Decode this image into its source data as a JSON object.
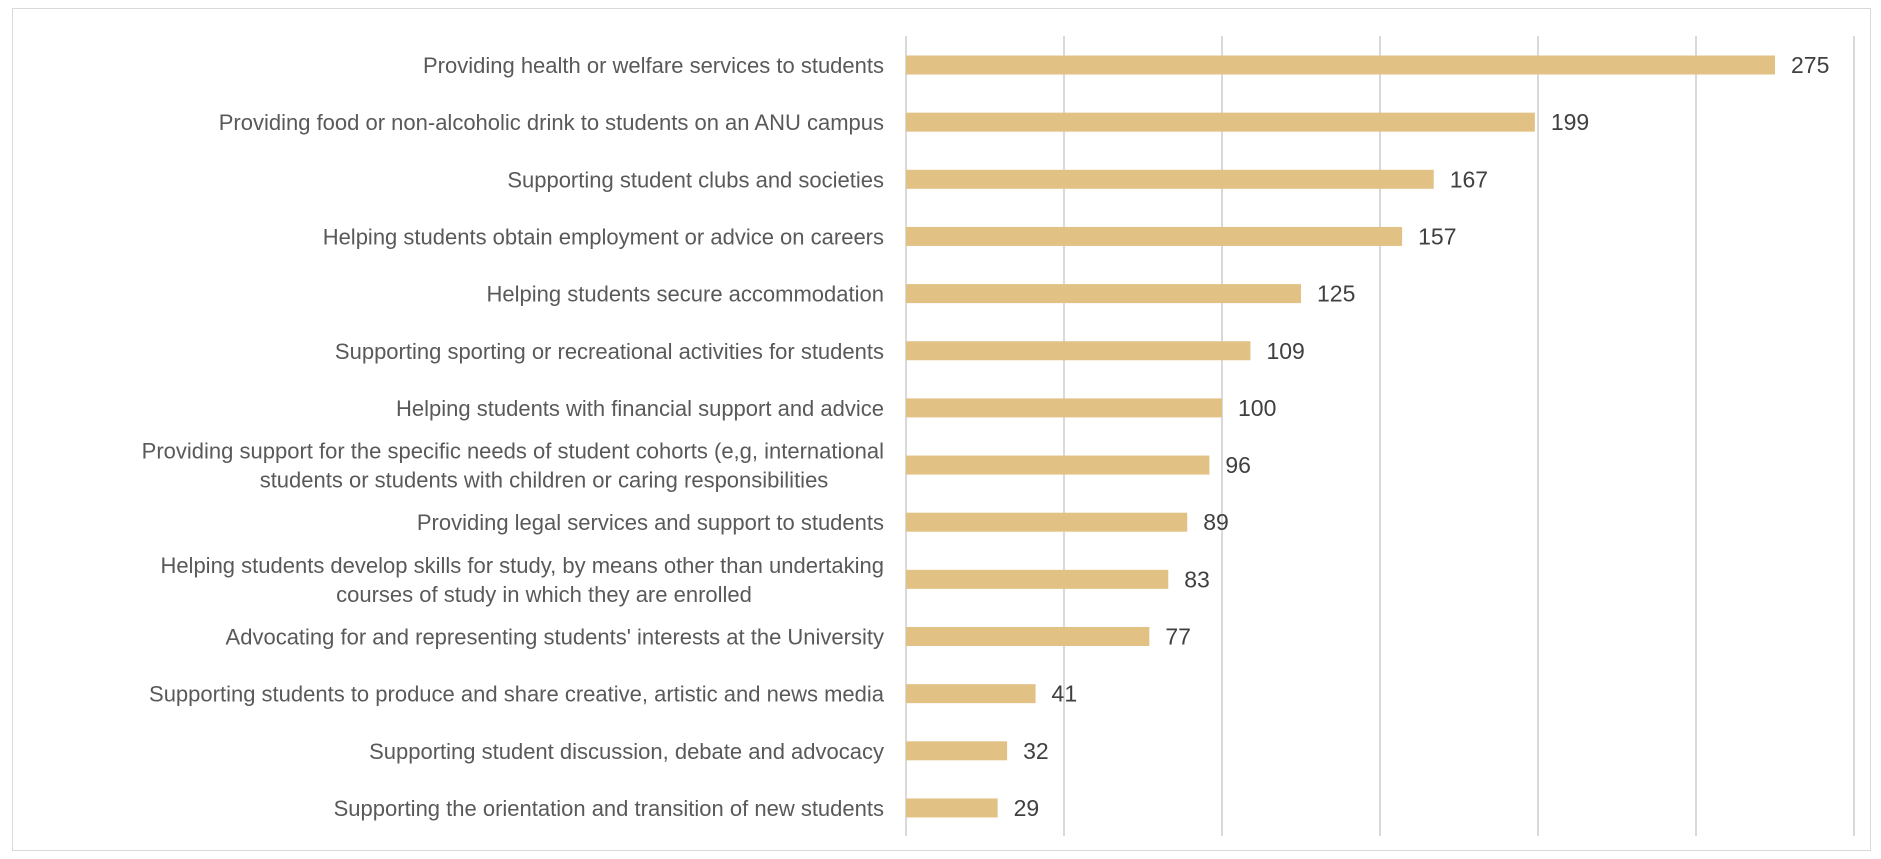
{
  "chart_data": {
    "type": "bar",
    "orientation": "horizontal",
    "title": "",
    "xlabel": "",
    "ylabel": "",
    "xlim": [
      0,
      300
    ],
    "grid": true,
    "legend": "none",
    "bar_color": "#E2C185",
    "categories": [
      [
        "Providing health or welfare services to students"
      ],
      [
        "Providing food or non-alcoholic drink to students on an ANU campus"
      ],
      [
        "Supporting student clubs and societies"
      ],
      [
        "Helping students obtain employment or advice on careers"
      ],
      [
        "Helping students secure accommodation"
      ],
      [
        "Supporting sporting or recreational activities for students"
      ],
      [
        "Helping students with financial support and advice"
      ],
      [
        "Providing support for the specific needs of student cohorts (e,g, international",
        "students or students with children or caring responsibilities"
      ],
      [
        "Providing legal services and support to students"
      ],
      [
        "Helping students develop skills for study, by means other than undertaking",
        "courses of study in which they are enrolled"
      ],
      [
        "Advocating for and representing students' interests at the University"
      ],
      [
        "Supporting students to produce and share creative, artistic and news media"
      ],
      [
        "Supporting student discussion, debate and advocacy"
      ],
      [
        "Supporting the orientation and transition of new students"
      ]
    ],
    "values": [
      275,
      199,
      167,
      157,
      125,
      109,
      100,
      96,
      89,
      83,
      77,
      41,
      32,
      29
    ]
  }
}
